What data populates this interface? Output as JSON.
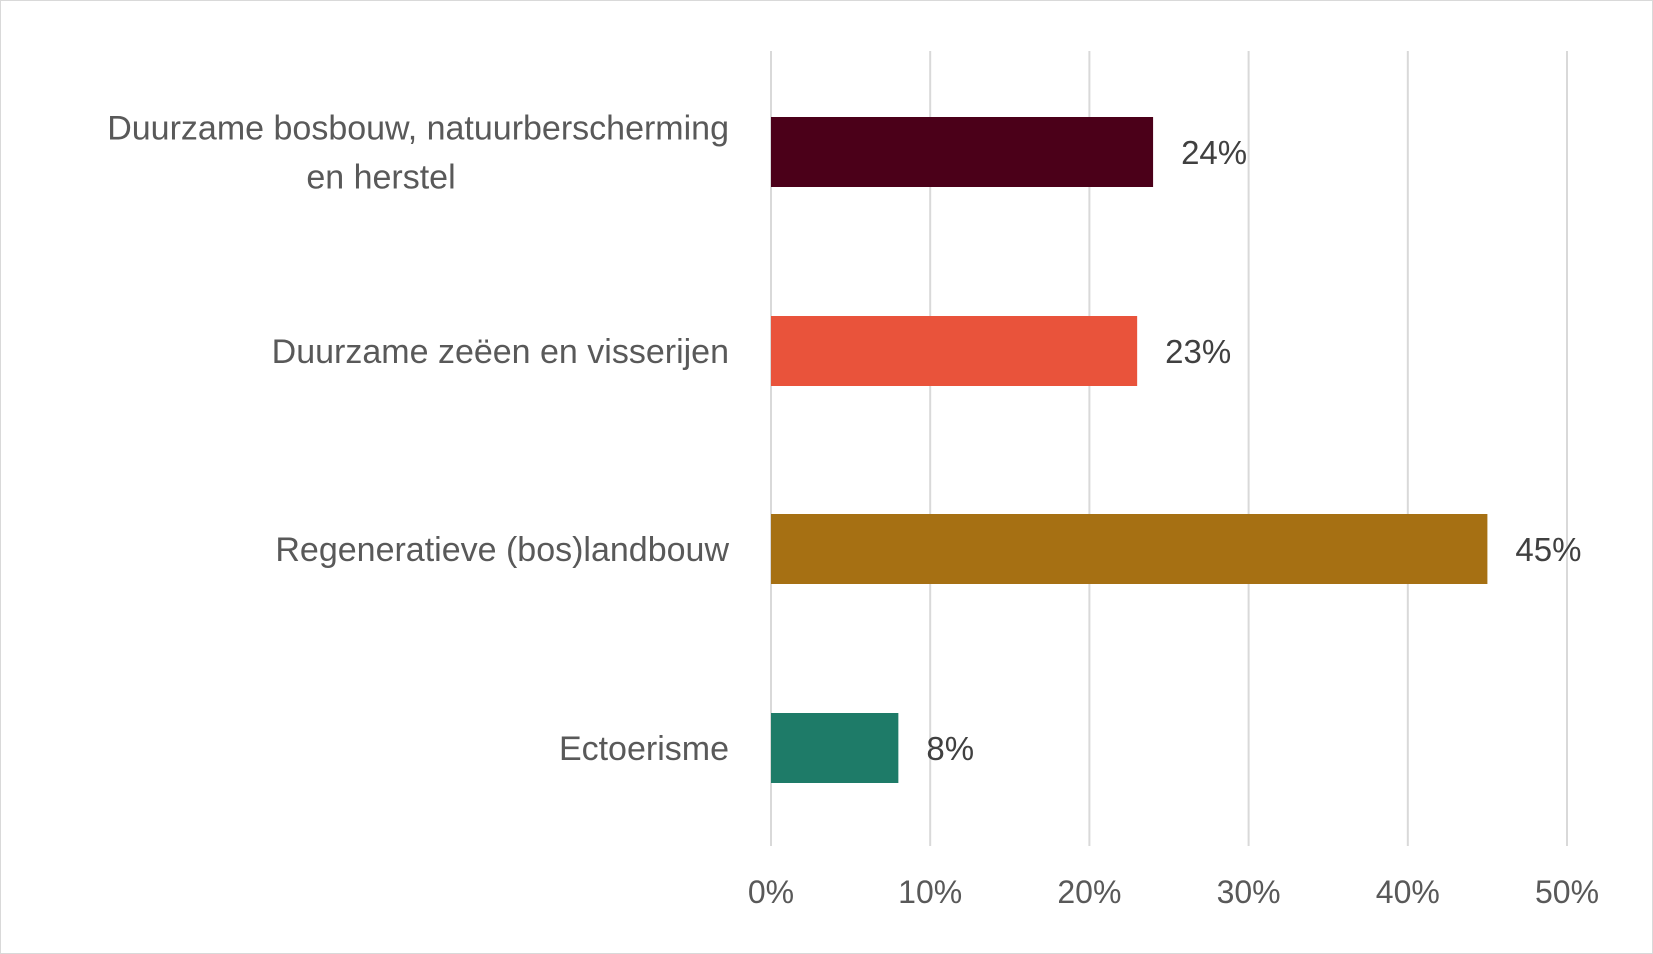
{
  "chart_data": {
    "type": "bar",
    "orientation": "horizontal",
    "title": "",
    "xlabel": "",
    "ylabel": "",
    "categories": [
      [
        "Duurzame bosbouw, natuurberscherming",
        "en herstel"
      ],
      [
        "Duurzame zeëen en visserijen"
      ],
      [
        "Regeneratieve (bos)landbouw"
      ],
      [
        "Ectoerisme"
      ]
    ],
    "values": [
      24,
      23,
      45,
      8
    ],
    "value_labels": [
      "24%",
      "23%",
      "45%",
      "8%"
    ],
    "colors": [
      "#4b0019",
      "#e9533b",
      "#a67013",
      "#1e7b68"
    ],
    "xlim": [
      0,
      50
    ],
    "ticks": [
      0,
      10,
      20,
      30,
      40,
      50
    ],
    "tick_labels": [
      "0%",
      "10%",
      "20%",
      "30%",
      "40%",
      "50%"
    ],
    "grid": true,
    "legend": "none"
  }
}
